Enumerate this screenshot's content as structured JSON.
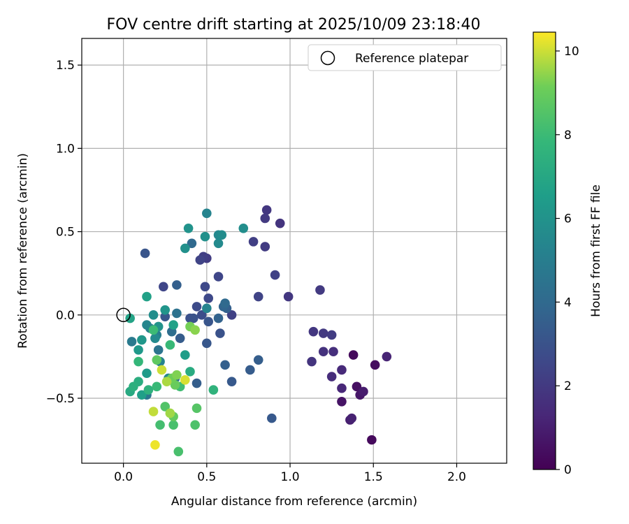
{
  "chart_data": {
    "type": "scatter",
    "title": "FOV centre drift starting at 2025/10/09 23:18:40",
    "xlabel": "Angular distance from reference (arcmin)",
    "ylabel": "Rotation from reference (arcmin)",
    "xlim": [
      -0.25,
      2.3
    ],
    "ylim": [
      -0.89,
      1.66
    ],
    "xticks": [
      0.0,
      0.5,
      1.0,
      1.5,
      2.0
    ],
    "xtick_labels": [
      "0.0",
      "0.5",
      "1.0",
      "1.5",
      "2.0"
    ],
    "yticks": [
      -0.5,
      0.0,
      0.5,
      1.0,
      1.5
    ],
    "ytick_labels": [
      "−0.5",
      "0.0",
      "0.5",
      "1.0",
      "1.5"
    ],
    "grid": true,
    "legend": {
      "position": "top-right",
      "entries": [
        "Reference platepar"
      ]
    },
    "reference_point": {
      "x": 0.0,
      "y": 0.0
    },
    "colorbar": {
      "label": "Hours from first FF file",
      "range": [
        0,
        10.45
      ],
      "ticks": [
        0,
        2,
        4,
        6,
        8,
        10
      ],
      "tick_labels": [
        "0",
        "2",
        "4",
        "6",
        "8",
        "10"
      ],
      "colormap": "viridis"
    },
    "points": [
      {
        "x": 1.49,
        "y": -0.75,
        "h": 0.3
      },
      {
        "x": 1.38,
        "y": -0.24,
        "h": 0.3
      },
      {
        "x": 1.51,
        "y": -0.3,
        "h": 0.4
      },
      {
        "x": 1.4,
        "y": -0.43,
        "h": 0.5
      },
      {
        "x": 1.31,
        "y": -0.52,
        "h": 0.6
      },
      {
        "x": 1.42,
        "y": -0.48,
        "h": 0.7
      },
      {
        "x": 1.44,
        "y": -0.46,
        "h": 0.9
      },
      {
        "x": 1.36,
        "y": -0.63,
        "h": 1.0
      },
      {
        "x": 1.37,
        "y": -0.62,
        "h": 1.1
      },
      {
        "x": 1.58,
        "y": -0.25,
        "h": 1.2
      },
      {
        "x": 1.31,
        "y": -0.44,
        "h": 1.3
      },
      {
        "x": 1.31,
        "y": -0.33,
        "h": 1.4
      },
      {
        "x": 1.25,
        "y": -0.37,
        "h": 1.5
      },
      {
        "x": 1.26,
        "y": -0.22,
        "h": 1.6
      },
      {
        "x": 1.2,
        "y": -0.22,
        "h": 1.7
      },
      {
        "x": 1.13,
        "y": -0.28,
        "h": 1.8
      },
      {
        "x": 1.14,
        "y": -0.1,
        "h": 1.9
      },
      {
        "x": 1.2,
        "y": -0.11,
        "h": 2.0
      },
      {
        "x": 1.25,
        "y": -0.12,
        "h": 2.1
      },
      {
        "x": 1.18,
        "y": 0.15,
        "h": 2.0
      },
      {
        "x": 0.99,
        "y": 0.11,
        "h": 1.9
      },
      {
        "x": 0.94,
        "y": 0.55,
        "h": 1.8
      },
      {
        "x": 0.86,
        "y": 0.63,
        "h": 1.9
      },
      {
        "x": 0.85,
        "y": 0.58,
        "h": 2.0
      },
      {
        "x": 0.85,
        "y": 0.41,
        "h": 2.1
      },
      {
        "x": 0.78,
        "y": 0.44,
        "h": 2.2
      },
      {
        "x": 0.91,
        "y": 0.24,
        "h": 2.3
      },
      {
        "x": 0.81,
        "y": 0.11,
        "h": 2.4
      },
      {
        "x": 0.65,
        "y": 0.0,
        "h": 2.3
      },
      {
        "x": 0.5,
        "y": 0.34,
        "h": 2.1
      },
      {
        "x": 0.48,
        "y": 0.35,
        "h": 2.2
      },
      {
        "x": 0.46,
        "y": 0.33,
        "h": 2.4
      },
      {
        "x": 0.57,
        "y": 0.23,
        "h": 2.5
      },
      {
        "x": 0.49,
        "y": 0.17,
        "h": 2.6
      },
      {
        "x": 0.51,
        "y": 0.1,
        "h": 2.6
      },
      {
        "x": 0.44,
        "y": 0.05,
        "h": 2.7
      },
      {
        "x": 0.47,
        "y": 0.0,
        "h": 2.8
      },
      {
        "x": 0.4,
        "y": -0.02,
        "h": 2.9
      },
      {
        "x": 0.42,
        "y": -0.02,
        "h": 3.0
      },
      {
        "x": 0.51,
        "y": -0.04,
        "h": 3.1
      },
      {
        "x": 0.58,
        "y": -0.11,
        "h": 3.0
      },
      {
        "x": 0.5,
        "y": -0.17,
        "h": 3.2
      },
      {
        "x": 0.89,
        "y": -0.62,
        "h": 3.3
      },
      {
        "x": 0.65,
        "y": -0.4,
        "h": 3.3
      },
      {
        "x": 0.76,
        "y": -0.33,
        "h": 3.4
      },
      {
        "x": 0.81,
        "y": -0.27,
        "h": 3.5
      },
      {
        "x": 0.61,
        "y": -0.3,
        "h": 3.6
      },
      {
        "x": 0.44,
        "y": -0.41,
        "h": 3.5
      },
      {
        "x": 0.62,
        "y": 0.04,
        "h": 3.6
      },
      {
        "x": 0.6,
        "y": 0.05,
        "h": 3.8
      },
      {
        "x": 0.61,
        "y": 0.07,
        "h": 4.0
      },
      {
        "x": 0.57,
        "y": -0.02,
        "h": 3.7
      },
      {
        "x": 0.24,
        "y": 0.17,
        "h": 2.5
      },
      {
        "x": 0.13,
        "y": 0.37,
        "h": 3.1
      },
      {
        "x": 0.25,
        "y": -0.01,
        "h": 3.2
      },
      {
        "x": 0.34,
        "y": -0.14,
        "h": 3.4
      },
      {
        "x": 0.32,
        "y": 0.18,
        "h": 3.6
      },
      {
        "x": 0.41,
        "y": 0.43,
        "h": 4.0
      },
      {
        "x": 0.31,
        "y": -0.38,
        "h": 4.1
      },
      {
        "x": 0.29,
        "y": -0.1,
        "h": 4.2
      },
      {
        "x": 0.32,
        "y": 0.01,
        "h": 4.4
      },
      {
        "x": 0.21,
        "y": -0.21,
        "h": 4.5
      },
      {
        "x": 0.14,
        "y": -0.48,
        "h": 4.6
      },
      {
        "x": 0.05,
        "y": -0.16,
        "h": 4.8
      },
      {
        "x": 0.5,
        "y": 0.61,
        "h": 5.3
      },
      {
        "x": 0.5,
        "y": 0.04,
        "h": 5.3
      },
      {
        "x": 0.27,
        "y": -0.38,
        "h": 5.4
      },
      {
        "x": 0.57,
        "y": 0.48,
        "h": 5.5
      },
      {
        "x": 0.57,
        "y": 0.43,
        "h": 5.6
      },
      {
        "x": 0.59,
        "y": 0.48,
        "h": 5.7
      },
      {
        "x": 0.72,
        "y": 0.52,
        "h": 5.8
      },
      {
        "x": 0.49,
        "y": 0.47,
        "h": 5.9
      },
      {
        "x": 0.37,
        "y": 0.4,
        "h": 5.9
      },
      {
        "x": 0.39,
        "y": 0.52,
        "h": 6.0
      },
      {
        "x": 0.2,
        "y": -0.12,
        "h": 5.0
      },
      {
        "x": 0.16,
        "y": -0.08,
        "h": 5.1
      },
      {
        "x": 0.22,
        "y": -0.28,
        "h": 5.2
      },
      {
        "x": 0.14,
        "y": -0.06,
        "h": 5.4
      },
      {
        "x": 0.19,
        "y": -0.14,
        "h": 5.6
      },
      {
        "x": 0.18,
        "y": 0.0,
        "h": 5.8
      },
      {
        "x": 0.21,
        "y": -0.07,
        "h": 6.0
      },
      {
        "x": 0.25,
        "y": 0.03,
        "h": 6.1
      },
      {
        "x": 0.11,
        "y": -0.15,
        "h": 6.2
      },
      {
        "x": 0.09,
        "y": -0.21,
        "h": 6.3
      },
      {
        "x": 0.14,
        "y": -0.35,
        "h": 6.4
      },
      {
        "x": 0.37,
        "y": -0.24,
        "h": 6.5
      },
      {
        "x": 0.11,
        "y": -0.48,
        "h": 6.6
      },
      {
        "x": 0.14,
        "y": 0.11,
        "h": 6.7
      },
      {
        "x": 0.04,
        "y": -0.02,
        "h": 6.8
      },
      {
        "x": 0.04,
        "y": -0.46,
        "h": 7.1
      },
      {
        "x": 0.3,
        "y": -0.06,
        "h": 6.7
      },
      {
        "x": 0.4,
        "y": -0.34,
        "h": 7.2
      },
      {
        "x": 0.09,
        "y": -0.4,
        "h": 7.3
      },
      {
        "x": 0.06,
        "y": -0.43,
        "h": 7.4
      },
      {
        "x": 0.15,
        "y": -0.45,
        "h": 7.5
      },
      {
        "x": 0.54,
        "y": -0.45,
        "h": 7.6
      },
      {
        "x": 0.09,
        "y": -0.28,
        "h": 7.8
      },
      {
        "x": 0.2,
        "y": -0.43,
        "h": 7.9
      },
      {
        "x": 0.28,
        "y": -0.18,
        "h": 7.9
      },
      {
        "x": 0.18,
        "y": -0.09,
        "h": 8.0
      },
      {
        "x": 0.34,
        "y": -0.43,
        "h": 8.1
      },
      {
        "x": 0.22,
        "y": -0.66,
        "h": 8.2
      },
      {
        "x": 0.3,
        "y": -0.66,
        "h": 8.3
      },
      {
        "x": 0.43,
        "y": -0.66,
        "h": 8.4
      },
      {
        "x": 0.25,
        "y": -0.55,
        "h": 8.5
      },
      {
        "x": 0.33,
        "y": -0.82,
        "h": 8.3
      },
      {
        "x": 0.44,
        "y": -0.56,
        "h": 8.6
      },
      {
        "x": 0.2,
        "y": -0.27,
        "h": 8.8
      },
      {
        "x": 0.3,
        "y": -0.61,
        "h": 8.9
      },
      {
        "x": 0.31,
        "y": -0.42,
        "h": 9.0
      },
      {
        "x": 0.29,
        "y": -0.38,
        "h": 9.1
      },
      {
        "x": 0.32,
        "y": -0.36,
        "h": 9.3
      },
      {
        "x": 0.4,
        "y": -0.07,
        "h": 9.2
      },
      {
        "x": 0.43,
        "y": -0.09,
        "h": 9.4
      },
      {
        "x": 0.28,
        "y": -0.59,
        "h": 9.6
      },
      {
        "x": 0.26,
        "y": -0.4,
        "h": 9.7
      },
      {
        "x": 0.18,
        "y": -0.58,
        "h": 9.9
      },
      {
        "x": 0.23,
        "y": -0.33,
        "h": 10.0
      },
      {
        "x": 0.37,
        "y": -0.39,
        "h": 10.1
      },
      {
        "x": 0.19,
        "y": -0.78,
        "h": 10.3
      }
    ]
  }
}
